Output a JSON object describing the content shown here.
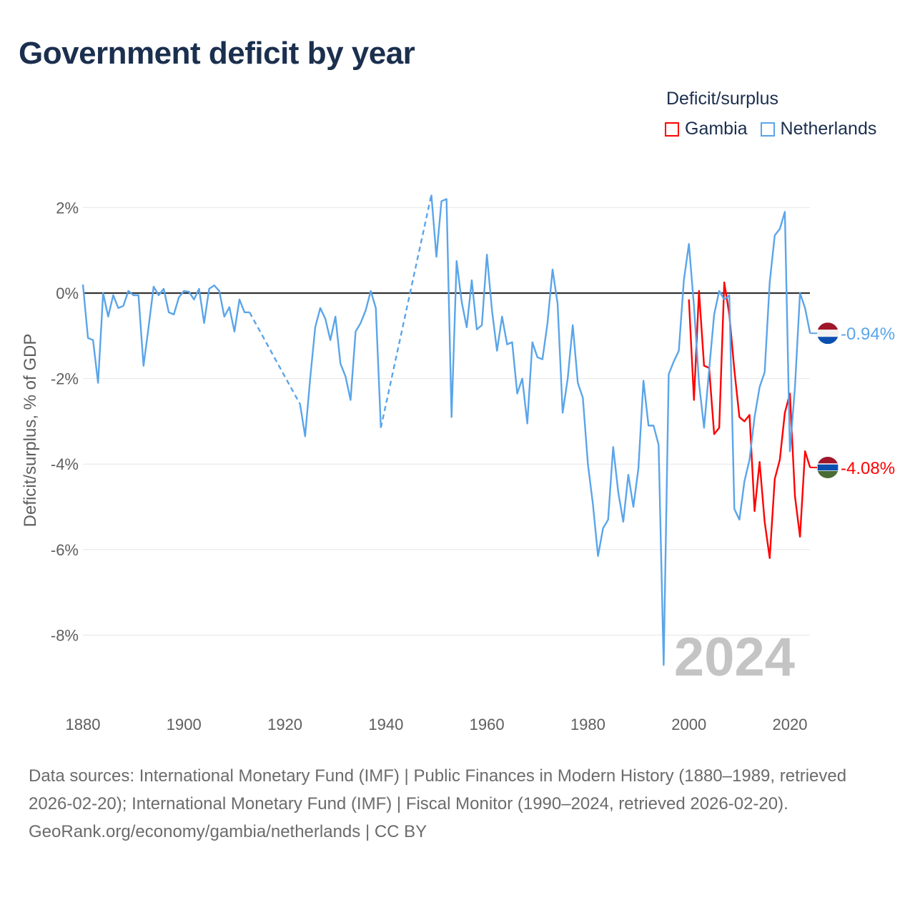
{
  "title": "Government deficit by year",
  "legend": {
    "title": "Deficit/surplus",
    "items": [
      {
        "label": "Gambia",
        "color": "#ff0000"
      },
      {
        "label": "Netherlands",
        "color": "#5aa5ea"
      }
    ]
  },
  "year_watermark": "2024",
  "footer": {
    "sources": "Data sources: International Monetary Fund (IMF) | Public Finances in Modern History (1880–1989, retrieved 2026-02-20); International Monetary Fund (IMF) | Fiscal Monitor (1990–2024, retrieved 2026-02-20).",
    "credit": "GeoRank.org/economy/gambia/netherlands | CC BY"
  },
  "chart_data": {
    "type": "line",
    "title": "Government deficit by year",
    "xlabel": "",
    "ylabel": "Deficit/surplus, % of GDP",
    "xlim": [
      1880,
      2024
    ],
    "ylim": [
      -9.5,
      2.5
    ],
    "x_ticks": [
      "1880",
      "1900",
      "1920",
      "1940",
      "1960",
      "1980",
      "2000",
      "2020"
    ],
    "y_ticks": [
      "2%",
      "0%",
      "-2%",
      "-4%",
      "-6%",
      "-8%"
    ],
    "y_tick_values": [
      2,
      0,
      -2,
      -4,
      -6,
      -8
    ],
    "grid": true,
    "legend_position": "top-right",
    "series": [
      {
        "name": "Netherlands",
        "color": "#5aa5ea",
        "end_label": "-0.94%",
        "start_year": 1880,
        "values": [
          0.2,
          -1.05,
          -1.1,
          -2.1,
          0,
          -0.55,
          -0.05,
          -0.35,
          -0.3,
          0.05,
          -0.05,
          -0.05,
          -1.7,
          -0.8,
          0.15,
          -0.05,
          0.1,
          -0.45,
          -0.5,
          -0.1,
          0.05,
          0.03,
          -0.15,
          0.1,
          -0.7,
          0.1,
          0.18,
          0.05,
          -0.55,
          -0.33,
          -0.9,
          -0.15,
          -0.45,
          -0.45,
          null,
          null,
          null,
          null,
          null,
          null,
          null,
          null,
          null,
          -2.6,
          -3.35,
          -2.0,
          -0.8,
          -0.35,
          -0.6,
          -1.1,
          -0.55,
          -1.65,
          -1.95,
          -2.5,
          -0.9,
          -0.7,
          -0.4,
          0.05,
          -0.35,
          -3.15,
          null,
          null,
          null,
          null,
          null,
          null,
          null,
          null,
          null,
          2.3,
          0.85,
          2.15,
          2.2,
          -2.9,
          0.75,
          -0.2,
          -0.8,
          0.3,
          -0.85,
          -0.75,
          0.9,
          -0.4,
          -1.35,
          -0.55,
          -1.2,
          -1.15,
          -2.35,
          -2.0,
          -3.05,
          -1.15,
          -1.5,
          -1.55,
          -0.7,
          0.55,
          -0.25,
          -2.8,
          -2.0,
          -0.75,
          -2.1,
          -2.45,
          -4.0,
          -4.95,
          -6.15,
          -5.5,
          -5.3,
          -3.6,
          -4.65,
          -5.35,
          -4.25,
          -5.0,
          -4.1,
          -2.05,
          -3.1,
          -3.1,
          -3.55,
          -8.7,
          -1.9,
          -1.6,
          -1.35,
          0.3,
          1.15,
          -0.3,
          -2.1,
          -3.15,
          -1.8,
          -0.5,
          0.05,
          -0.15,
          -0.05,
          -5.05,
          -5.3,
          -4.4,
          -3.9,
          -2.9,
          -2.2,
          -1.85,
          0.25,
          1.35,
          1.5,
          1.9,
          -3.7,
          -2.2,
          0.0,
          -0.35,
          -0.94
        ]
      },
      {
        "name": "Gambia",
        "color": "#ff0000",
        "end_label": "-4.08%",
        "start_year": 2000,
        "values": [
          -0.15,
          -2.5,
          0.05,
          -1.7,
          -1.75,
          -3.3,
          -3.15,
          0.25,
          -0.5,
          -1.8,
          -2.9,
          -3.0,
          -2.85,
          -5.1,
          -3.95,
          -5.35,
          -6.2,
          -4.35,
          -3.9,
          -2.8,
          -2.35,
          -4.75,
          -5.7,
          -3.7,
          -4.08
        ]
      }
    ]
  }
}
